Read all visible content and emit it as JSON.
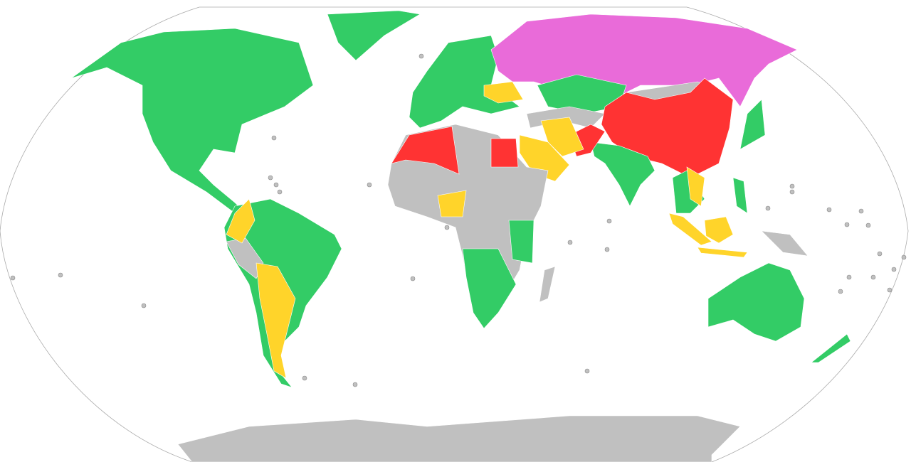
{
  "map": {
    "colors": {
      "green": "#33cc66",
      "red": "#ff3333",
      "yellow": "#ffd42a",
      "pink": "#e96bd9",
      "gray": "#c0c0c0",
      "border": "#aaaaaa",
      "background": "#ffffff"
    }
  }
}
